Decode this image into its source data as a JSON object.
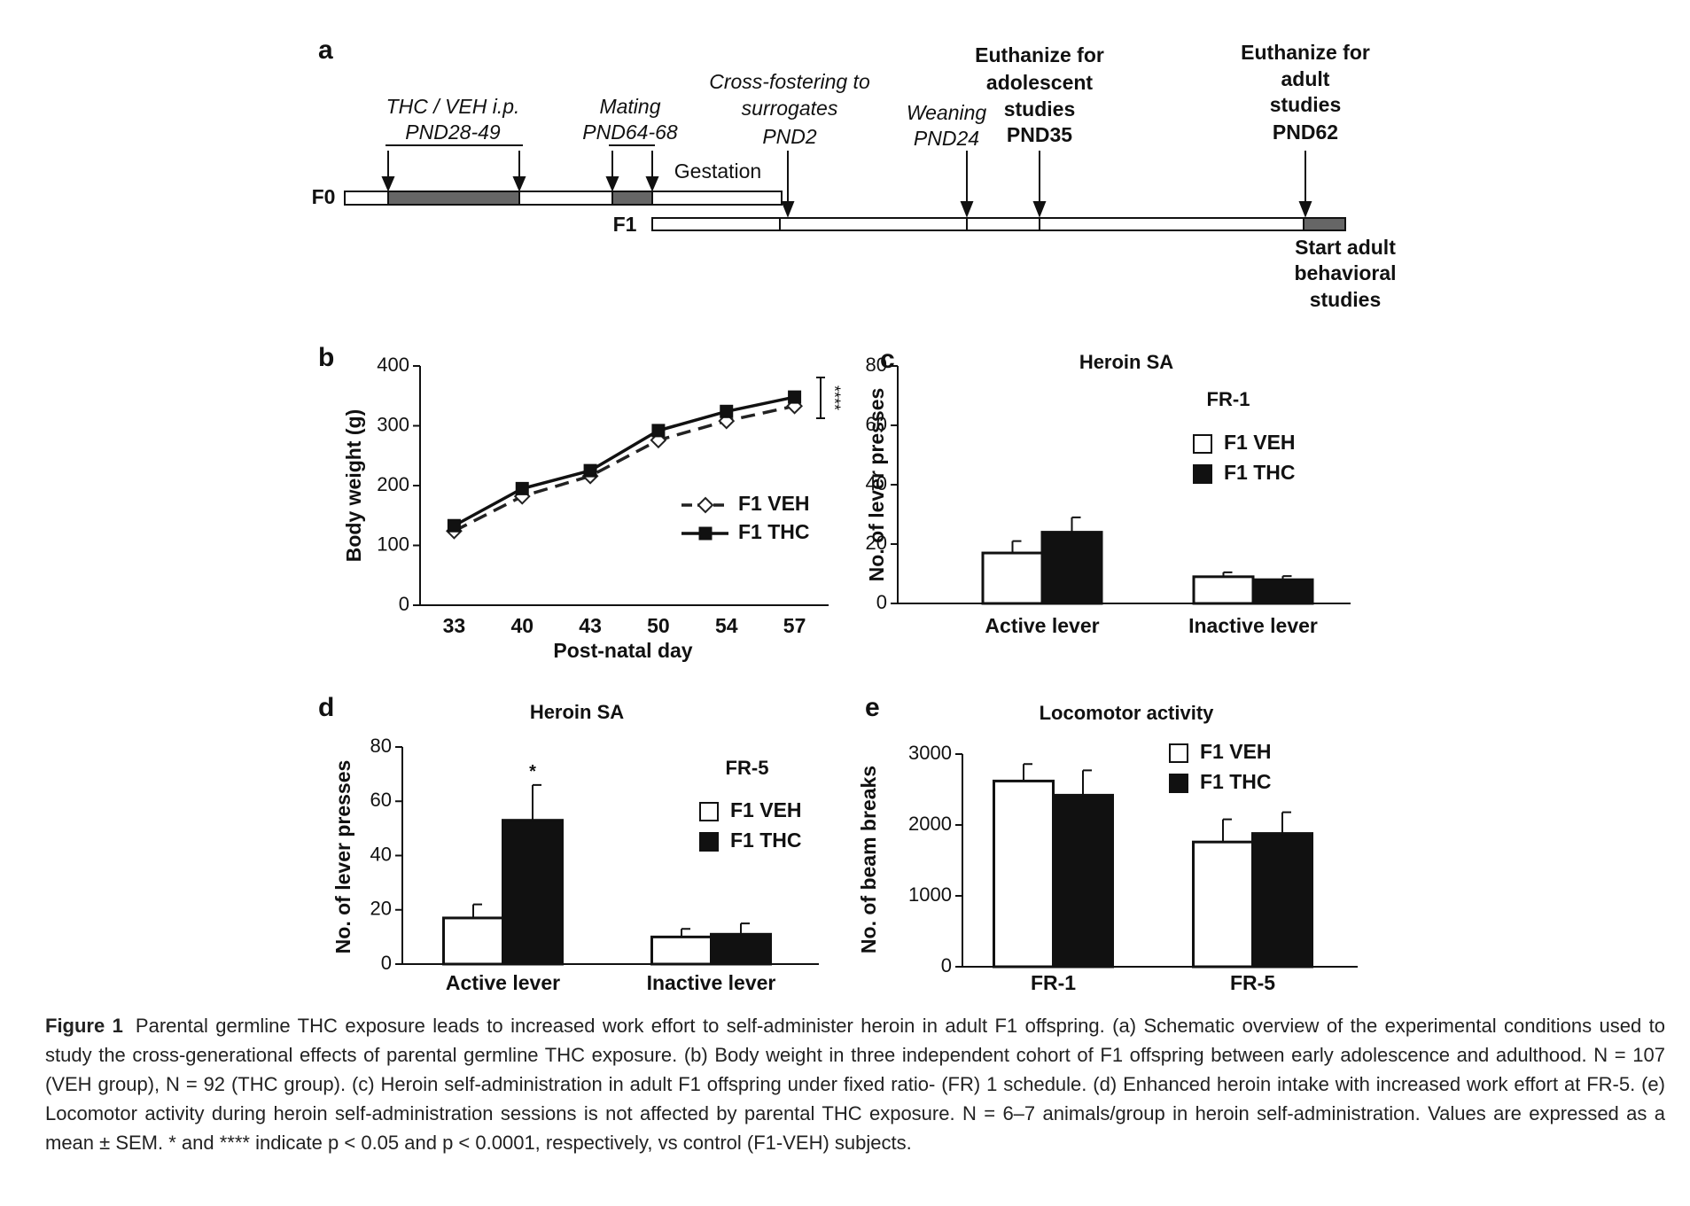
{
  "diagram": {
    "panel": "a",
    "events": [
      {
        "lines": [
          "THC / VEH i.p.",
          "PND28-49"
        ]
      },
      {
        "lines": [
          "Mating",
          "PND64-68"
        ]
      },
      {
        "lines": [
          "Cross-fostering to",
          "surrogates",
          "PND2"
        ]
      },
      {
        "lines": [
          "Weaning",
          "PND24"
        ]
      },
      {
        "lines": [
          "Euthanize for",
          "adolescent",
          "studies",
          "PND35"
        ]
      },
      {
        "lines": [
          "Euthanize for",
          "adult",
          "studies",
          "PND62"
        ]
      }
    ],
    "gestation": "Gestation",
    "f0": "F0",
    "f1": "F1",
    "end_note": [
      "Start adult",
      "behavioral",
      "studies"
    ]
  },
  "chart_data": [
    {
      "type": "line",
      "panel": "b",
      "xlabel": "Post-natal day",
      "ylabel": "Body weight (g)",
      "categories": [
        "33",
        "40",
        "43",
        "50",
        "54",
        "57"
      ],
      "series": [
        {
          "name": "F1 VEH",
          "color": "#222222",
          "marker": "diamond",
          "dashed": true,
          "values": [
            124,
            182,
            216,
            276,
            308,
            333
          ]
        },
        {
          "name": "F1 THC",
          "color": "#111111",
          "marker": "square",
          "dashed": false,
          "values": [
            133,
            195,
            225,
            292,
            324,
            348
          ]
        }
      ],
      "annotation": "****",
      "ylim": [
        0,
        400
      ],
      "yticks": [
        0,
        100,
        200,
        300,
        400
      ]
    },
    {
      "type": "bar",
      "panel": "c",
      "title": "Heroin SA",
      "subtitle": "FR-1",
      "ylabel": "No. of lever presses",
      "categories": [
        "Active lever",
        "Inactive lever"
      ],
      "series": [
        {
          "name": "F1 VEH",
          "color": "#ffffff",
          "values": [
            17,
            9
          ],
          "errors": [
            4,
            1.5
          ]
        },
        {
          "name": "F1 THC",
          "color": "#111111",
          "values": [
            24,
            8
          ],
          "errors": [
            5,
            1.2
          ]
        }
      ],
      "ylim": [
        0,
        80
      ],
      "yticks": [
        0,
        20,
        40,
        60,
        80
      ]
    },
    {
      "type": "bar",
      "panel": "d",
      "title": "Heroin SA",
      "subtitle": "FR-5",
      "ylabel": "No. of lever presses",
      "categories": [
        "Active lever",
        "Inactive lever"
      ],
      "series": [
        {
          "name": "F1 VEH",
          "color": "#ffffff",
          "values": [
            17,
            10
          ],
          "errors": [
            5,
            3
          ]
        },
        {
          "name": "F1 THC",
          "color": "#111111",
          "values": [
            53,
            11
          ],
          "errors": [
            13,
            4
          ]
        }
      ],
      "annotation": "*",
      "ylim": [
        0,
        80
      ],
      "yticks": [
        0,
        20,
        40,
        60,
        80
      ]
    },
    {
      "type": "bar",
      "panel": "e",
      "title": "Locomotor activity",
      "ylabel": "No. of beam breaks",
      "categories": [
        "FR-1",
        "FR-5"
      ],
      "series": [
        {
          "name": "F1 VEH",
          "color": "#ffffff",
          "values": [
            2620,
            1760
          ],
          "errors": [
            240,
            320
          ]
        },
        {
          "name": "F1 THC",
          "color": "#111111",
          "values": [
            2420,
            1880
          ],
          "errors": [
            350,
            300
          ]
        }
      ],
      "ylim": [
        0,
        3000
      ],
      "yticks": [
        0,
        1000,
        2000,
        3000
      ]
    }
  ],
  "caption": {
    "label": "Figure 1",
    "text": "Parental germline THC exposure leads to increased work effort to self-administer heroin in adult F1 offspring. (a) Schematic overview of the experimental conditions used to study the cross-generational effects of parental germline THC exposure. (b) Body weight in three independent cohort of F1 offspring between early adolescence and adulthood. N = 107 (VEH group), N = 92 (THC group). (c) Heroin self-administration in adult F1 offspring under fixed ratio- (FR) 1 schedule. (d) Enhanced heroin intake with increased work effort at FR-5. (e) Locomotor activity during heroin self-administration sessions is not affected by parental THC exposure. N = 6–7 animals/group in heroin self-administration. Values are expressed as a mean ± SEM. * and **** indicate p < 0.05 and p < 0.0001, respectively, vs control (F1-VEH) subjects."
  }
}
